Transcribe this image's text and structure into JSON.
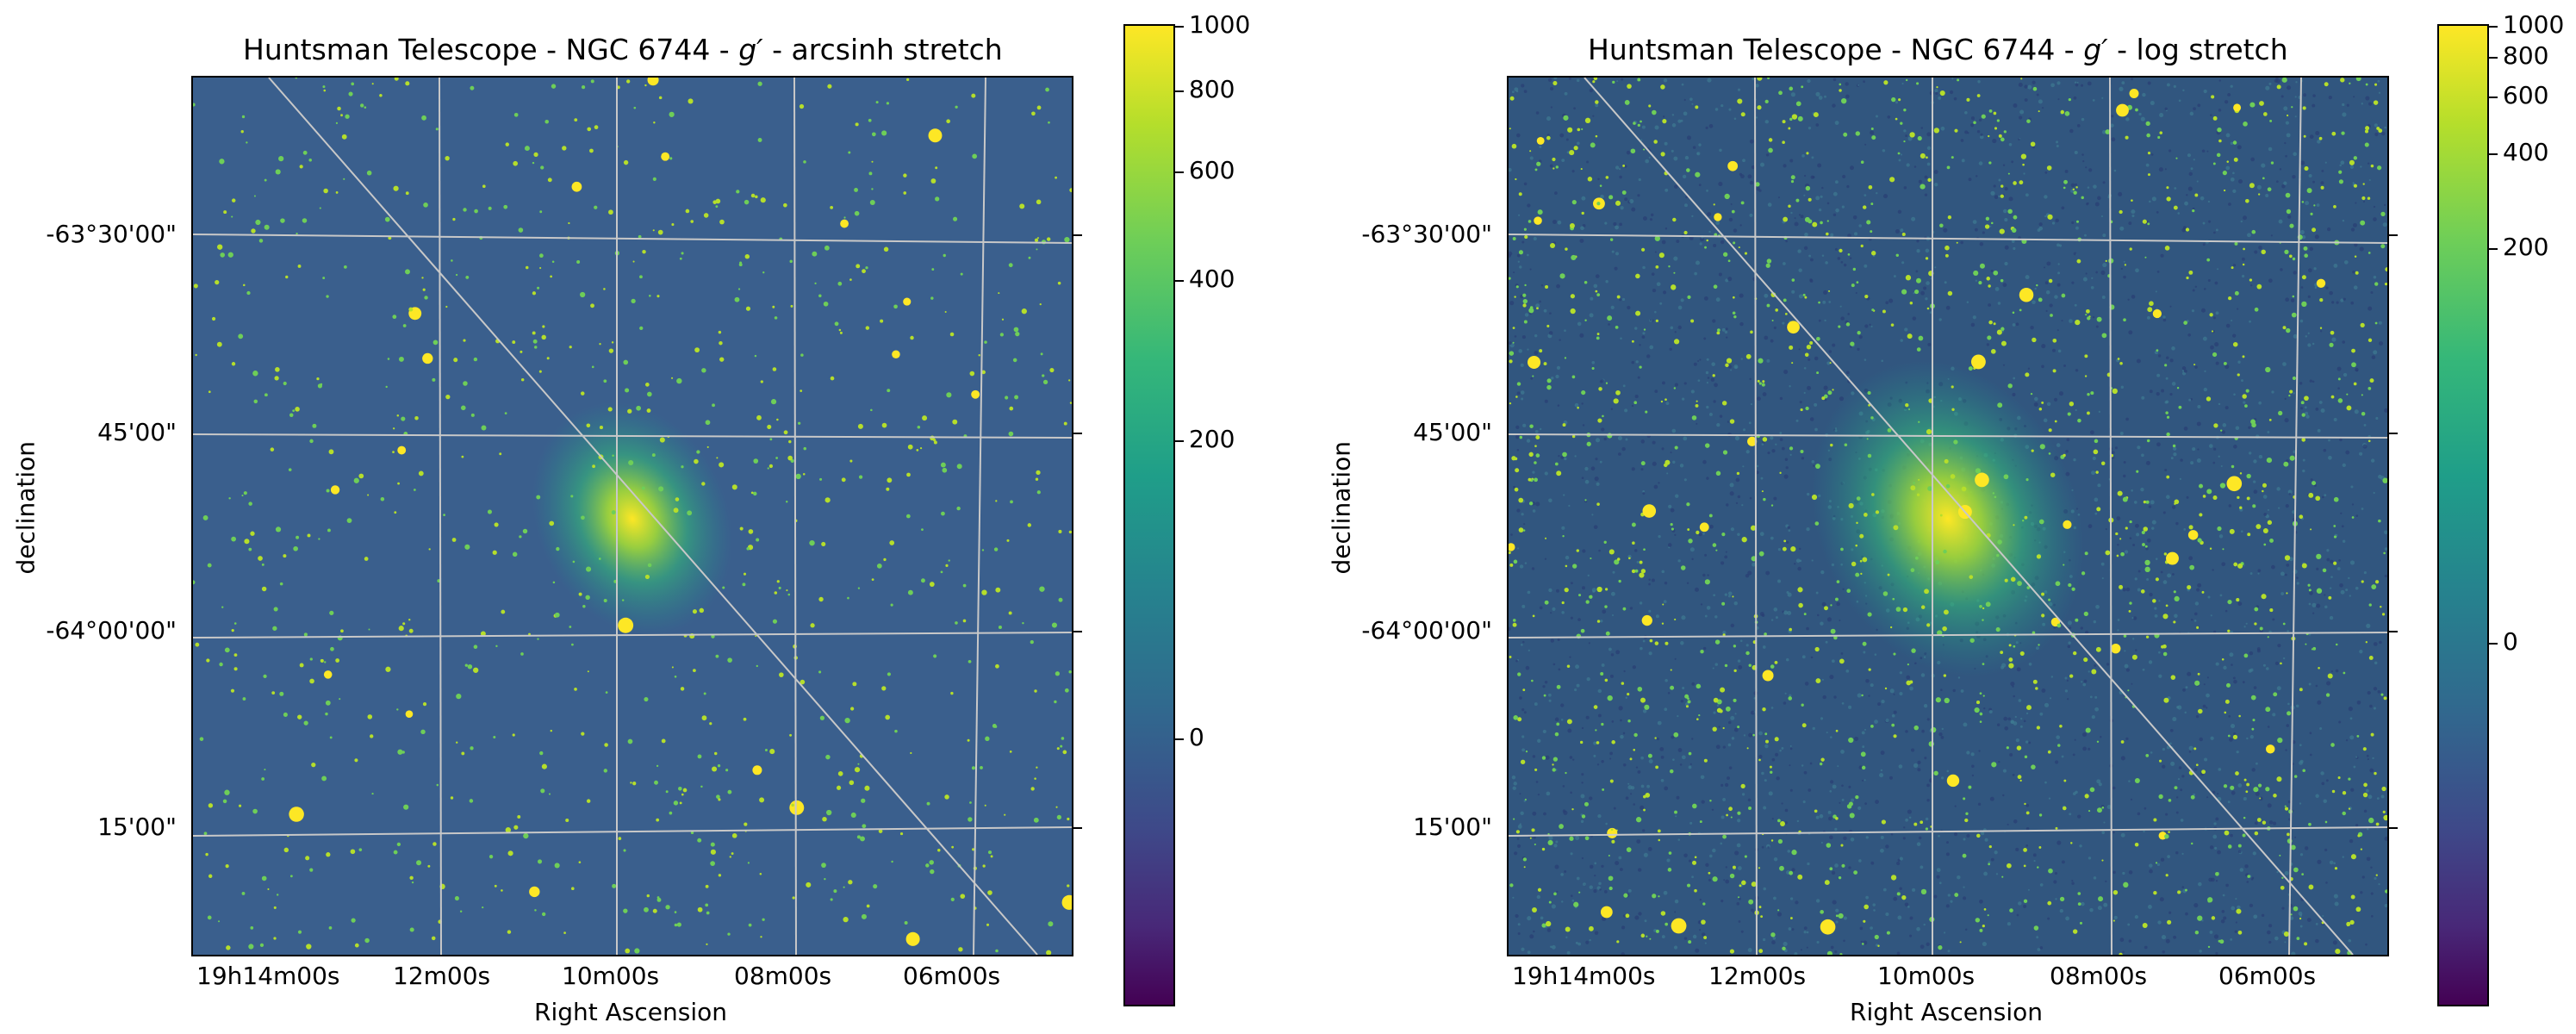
{
  "panels": [
    {
      "title": "Huntsman Telescope - NGC 6744 - g′ - arcsinh stretch",
      "title_parts": {
        "prefix": "Huntsman Telescope - NGC 6744 - ",
        "filter": "g′",
        "suffix": " - arcsinh stretch"
      },
      "xlabel": "Right Ascension",
      "ylabel": "declination",
      "ra_ticks": [
        "19h14m00s",
        "12m00s",
        "10m00s",
        "08m00s",
        "06m00s"
      ],
      "dec_ticks": [
        "-63°30'00\"",
        "45'00\"",
        "-64°00'00\"",
        "15'00\""
      ],
      "colorbar_ticks": [
        "1000",
        "800",
        "600",
        "400",
        "200",
        "0"
      ],
      "colormap": "viridis"
    },
    {
      "title": "Huntsman Telescope - NGC 6744 - g′ - log stretch",
      "title_parts": {
        "prefix": "Huntsman Telescope - NGC 6744 - ",
        "filter": "g′",
        "suffix": " - log stretch"
      },
      "xlabel": "Right Ascension",
      "ylabel": "declination",
      "ra_ticks": [
        "19h14m00s",
        "12m00s",
        "10m00s",
        "08m00s",
        "06m00s"
      ],
      "dec_ticks": [
        "-63°30'00\"",
        "45'00\"",
        "-64°00'00\"",
        "15'00\""
      ],
      "colorbar_ticks": [
        "1000",
        "800",
        "600",
        "400",
        "200",
        "0"
      ],
      "colormap": "viridis"
    }
  ],
  "colors": {
    "viridis_top": "#fde725",
    "viridis_mid": "#21918c",
    "viridis_bottom": "#440154",
    "background_arcsinh": "#3a5f8d",
    "background_log": "#31567f",
    "grid": "#c8c8c8"
  }
}
